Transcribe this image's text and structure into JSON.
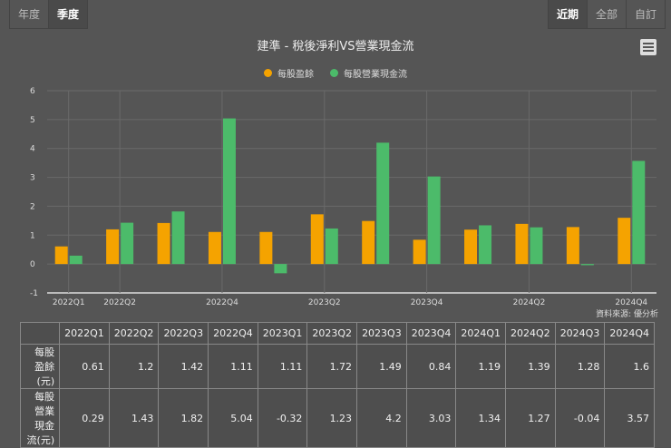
{
  "toolbar": {
    "period_tabs": [
      "年度",
      "季度"
    ],
    "active_period": "季度",
    "range_tabs": [
      "近期",
      "全部",
      "自訂"
    ],
    "active_range": "近期"
  },
  "menu_icon": "hamburger-menu-icon",
  "source": "資料來源: 優分析",
  "chart_data": {
    "type": "bar",
    "title": "建準 - 稅後淨利VS營業現金流",
    "categories": [
      "2022Q1",
      "2022Q2",
      "2022Q3",
      "2022Q4",
      "2023Q1",
      "2023Q2",
      "2023Q3",
      "2023Q4",
      "2024Q1",
      "2024Q2",
      "2024Q3",
      "2024Q4"
    ],
    "x_tick_labels": [
      "2022Q1",
      "2022Q2",
      "2022Q4",
      "2023Q2",
      "2023Q4",
      "2024Q2",
      "2024Q4"
    ],
    "series": [
      {
        "name": "每股盈餘",
        "color": "#f5a300",
        "values": [
          0.61,
          1.2,
          1.42,
          1.11,
          1.11,
          1.72,
          1.49,
          0.84,
          1.19,
          1.39,
          1.28,
          1.6
        ]
      },
      {
        "name": "每股營業現金流",
        "color": "#4cbb6a",
        "values": [
          0.29,
          1.43,
          1.82,
          5.04,
          -0.32,
          1.23,
          4.2,
          3.03,
          1.34,
          1.27,
          -0.04,
          3.57
        ]
      }
    ],
    "ylim": [
      -1,
      6
    ],
    "yticks": [
      -1,
      0,
      1,
      2,
      3,
      4,
      5,
      6
    ],
    "grid": true,
    "legend": "top"
  },
  "table": {
    "row_labels": [
      "每股盈餘(元)",
      "每股營業現金流(元)"
    ]
  }
}
